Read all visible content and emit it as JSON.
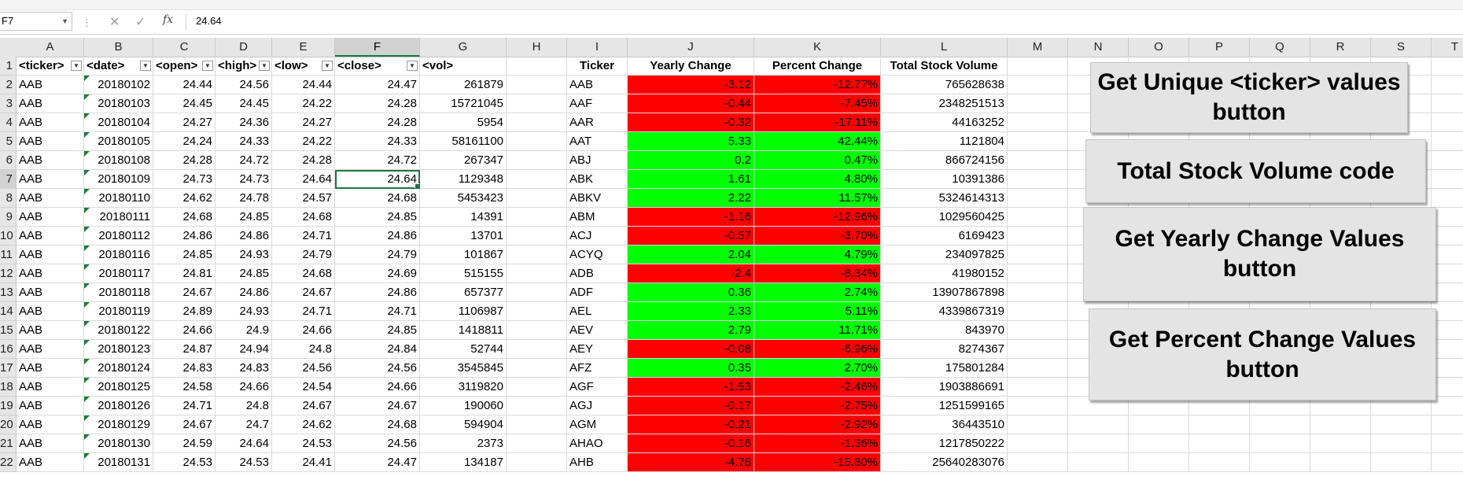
{
  "formula_bar": {
    "name_box": "F7",
    "cancel_icon": "✕",
    "enter_icon": "✓",
    "fx_label": "fx",
    "value": "24.64"
  },
  "columns": [
    "A",
    "B",
    "C",
    "D",
    "E",
    "F",
    "G",
    "H",
    "I",
    "J",
    "K",
    "L",
    "M",
    "N",
    "O",
    "P",
    "Q",
    "R",
    "S",
    "T"
  ],
  "row_numbers": [
    "1",
    "2",
    "3",
    "4",
    "5",
    "6",
    "7",
    "8",
    "9",
    "10",
    "11",
    "12",
    "13",
    "14",
    "15",
    "16",
    "17",
    "18",
    "19",
    "20",
    "21",
    "22"
  ],
  "headers": {
    "ticker": "<ticker>",
    "date": "<date>",
    "open": "<open>",
    "high": "<high>",
    "low": "<low>",
    "close": "<close>",
    "vol": "<vol>",
    "summary_ticker": "Ticker",
    "yearly_change": "Yearly Change",
    "percent_change": "Percent Change",
    "total_volume": "Total Stock Volume"
  },
  "stock_rows": [
    [
      "AAB",
      "20180102",
      "24.44",
      "24.56",
      "24.44",
      "24.47",
      "261879"
    ],
    [
      "AAB",
      "20180103",
      "24.45",
      "24.45",
      "24.22",
      "24.28",
      "15721045"
    ],
    [
      "AAB",
      "20180104",
      "24.27",
      "24.36",
      "24.27",
      "24.28",
      "5954"
    ],
    [
      "AAB",
      "20180105",
      "24.24",
      "24.33",
      "24.22",
      "24.33",
      "58161100"
    ],
    [
      "AAB",
      "20180108",
      "24.28",
      "24.72",
      "24.28",
      "24.72",
      "267347"
    ],
    [
      "AAB",
      "20180109",
      "24.73",
      "24.73",
      "24.64",
      "24.64",
      "1129348"
    ],
    [
      "AAB",
      "20180110",
      "24.62",
      "24.78",
      "24.57",
      "24.68",
      "5453423"
    ],
    [
      "AAB",
      "20180111",
      "24.68",
      "24.85",
      "24.68",
      "24.85",
      "14391"
    ],
    [
      "AAB",
      "20180112",
      "24.86",
      "24.86",
      "24.71",
      "24.86",
      "13701"
    ],
    [
      "AAB",
      "20180116",
      "24.85",
      "24.93",
      "24.79",
      "24.79",
      "101867"
    ],
    [
      "AAB",
      "20180117",
      "24.81",
      "24.85",
      "24.68",
      "24.69",
      "515155"
    ],
    [
      "AAB",
      "20180118",
      "24.67",
      "24.86",
      "24.67",
      "24.86",
      "657377"
    ],
    [
      "AAB",
      "20180119",
      "24.89",
      "24.93",
      "24.71",
      "24.71",
      "1106987"
    ],
    [
      "AAB",
      "20180122",
      "24.66",
      "24.9",
      "24.66",
      "24.85",
      "1418811"
    ],
    [
      "AAB",
      "20180123",
      "24.87",
      "24.94",
      "24.8",
      "24.84",
      "52744"
    ],
    [
      "AAB",
      "20180124",
      "24.83",
      "24.83",
      "24.56",
      "24.56",
      "3545845"
    ],
    [
      "AAB",
      "20180125",
      "24.58",
      "24.66",
      "24.54",
      "24.66",
      "3119820"
    ],
    [
      "AAB",
      "20180126",
      "24.71",
      "24.8",
      "24.67",
      "24.67",
      "190060"
    ],
    [
      "AAB",
      "20180129",
      "24.67",
      "24.7",
      "24.62",
      "24.68",
      "594904"
    ],
    [
      "AAB",
      "20180130",
      "24.59",
      "24.64",
      "24.53",
      "24.56",
      "2373"
    ],
    [
      "AAB",
      "20180131",
      "24.53",
      "24.53",
      "24.41",
      "24.47",
      "134187"
    ]
  ],
  "summary_rows": [
    {
      "ticker": "AAB",
      "yearly": "-3.12",
      "percent": "-12.77%",
      "volume": "765628638",
      "status": "negative"
    },
    {
      "ticker": "AAF",
      "yearly": "-0.44",
      "percent": "-7.45%",
      "volume": "2348251513",
      "status": "negative"
    },
    {
      "ticker": "AAR",
      "yearly": "-0.32",
      "percent": "-17.11%",
      "volume": "44163252",
      "status": "negative"
    },
    {
      "ticker": "AAT",
      "yearly": "5.33",
      "percent": "42.44%",
      "volume": "1121804",
      "status": "positive"
    },
    {
      "ticker": "ABJ",
      "yearly": "0.2",
      "percent": "0.47%",
      "volume": "866724156",
      "status": "positive"
    },
    {
      "ticker": "ABK",
      "yearly": "1.61",
      "percent": "4.80%",
      "volume": "10391386",
      "status": "positive"
    },
    {
      "ticker": "ABKV",
      "yearly": "2.22",
      "percent": "11.57%",
      "volume": "5324614313",
      "status": "positive"
    },
    {
      "ticker": "ABM",
      "yearly": "-1.16",
      "percent": "-12.96%",
      "volume": "1029560425",
      "status": "negative"
    },
    {
      "ticker": "ACJ",
      "yearly": "-0.57",
      "percent": "-3.70%",
      "volume": "6169423",
      "status": "negative"
    },
    {
      "ticker": "ACYQ",
      "yearly": "2.04",
      "percent": "4.79%",
      "volume": "234097825",
      "status": "positive"
    },
    {
      "ticker": "ADB",
      "yearly": "-2.4",
      "percent": "-8.34%",
      "volume": "41980152",
      "status": "negative"
    },
    {
      "ticker": "ADF",
      "yearly": "0.36",
      "percent": "2.74%",
      "volume": "13907867898",
      "status": "positive"
    },
    {
      "ticker": "AEL",
      "yearly": "2.33",
      "percent": "5.11%",
      "volume": "4339867319",
      "status": "positive"
    },
    {
      "ticker": "AEV",
      "yearly": "2.79",
      "percent": "11.71%",
      "volume": "843970",
      "status": "positive"
    },
    {
      "ticker": "AEY",
      "yearly": "-0.08",
      "percent": "-6.96%",
      "volume": "8274367",
      "status": "negative"
    },
    {
      "ticker": "AFZ",
      "yearly": "0.35",
      "percent": "2.70%",
      "volume": "175801284",
      "status": "positive"
    },
    {
      "ticker": "AGF",
      "yearly": "-1.53",
      "percent": "-2.46%",
      "volume": "1903886691",
      "status": "negative"
    },
    {
      "ticker": "AGJ",
      "yearly": "-0.17",
      "percent": "-2.75%",
      "volume": "1251599165",
      "status": "negative"
    },
    {
      "ticker": "AGM",
      "yearly": "-0.21",
      "percent": "-2.92%",
      "volume": "36443510",
      "status": "negative"
    },
    {
      "ticker": "AHAO",
      "yearly": "-0.16",
      "percent": "-1.36%",
      "volume": "1217850222",
      "status": "negative"
    },
    {
      "ticker": "AHB",
      "yearly": "-4.78",
      "percent": "-15.80%",
      "volume": "25640283076",
      "status": "negative"
    }
  ],
  "colors": {
    "positive_fill": "#00ff00",
    "negative_fill": "#ff0000",
    "selection": "#217346"
  },
  "buttons": {
    "unique_ticker": "Get Unique <ticker> values button",
    "total_volume": "Total Stock Volume code",
    "yearly_change": "Get Yearly Change  Values button",
    "percent_change": "Get Percent Change  Values button"
  },
  "active_cell": {
    "column": "F",
    "row": "7"
  }
}
